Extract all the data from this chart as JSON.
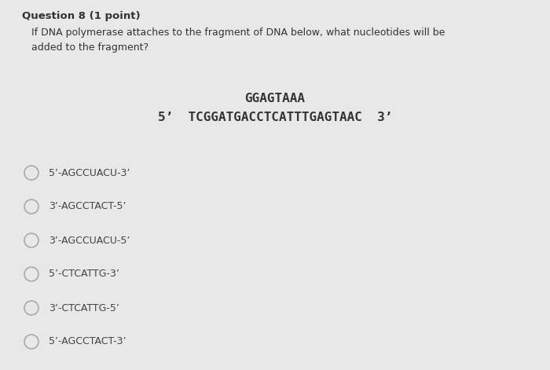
{
  "bg_color": "#e8e8e8",
  "title_text": "Question 8 (1 point)",
  "question_text": "If DNA polymerase attaches to the fragment of DNA below, what nucleotides will be\nadded to the fragment?",
  "dna_line1": "GGAGTAAA",
  "dna_line2": "5’  TCGGATGACCTCATTTGAGTAAC  3’",
  "options": [
    "5’-AGCCUACU-3’",
    "3’-AGCCTACT-5’",
    "3’-AGCCUACU-5’",
    "5’-CTCATTG-3’",
    "3’-CTCATTG-5’",
    "5’-AGCCTACT-3’"
  ],
  "text_color": "#333333",
  "option_text_color": "#444444",
  "circle_color": "#aaaaaa",
  "title_fontsize": 9.5,
  "question_fontsize": 9.0,
  "dna_fontsize": 11.5,
  "option_fontsize": 9.0,
  "fig_width": 7.0,
  "fig_height": 4.71,
  "dpi": 100
}
